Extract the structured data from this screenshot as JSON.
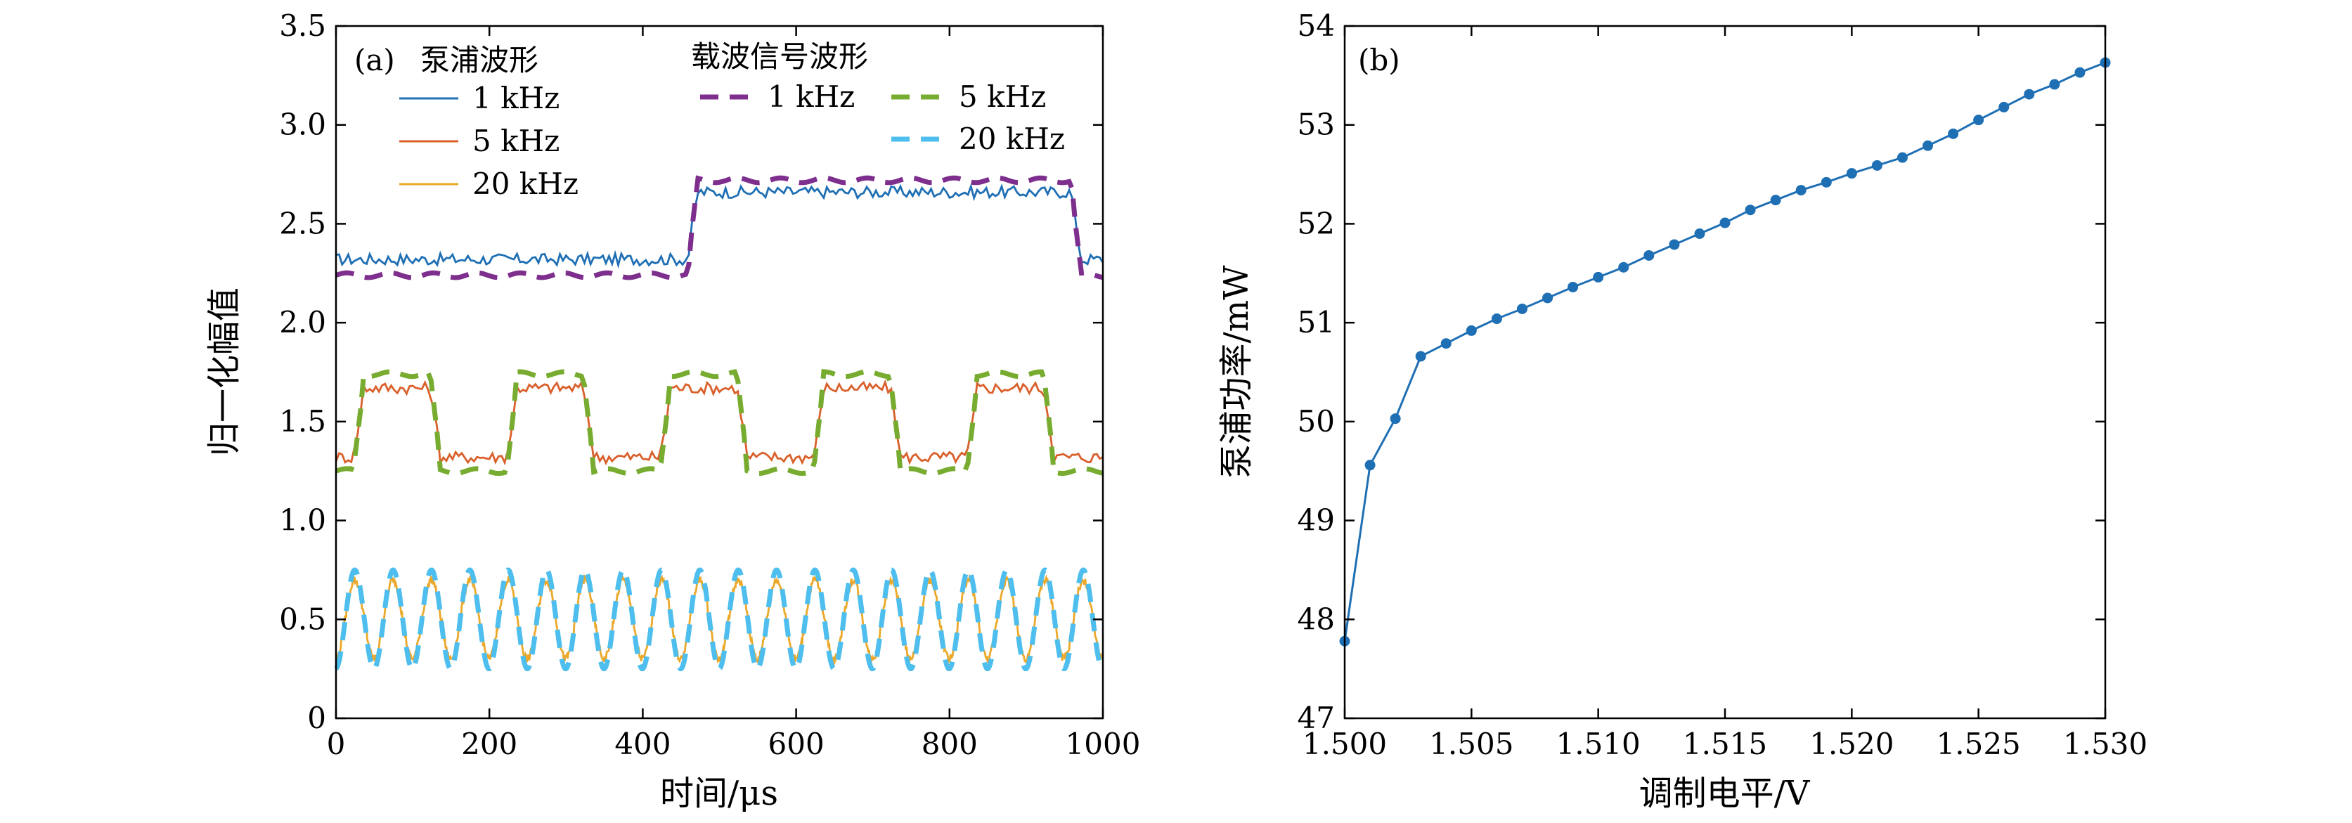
{
  "chart_data": [
    {
      "panel": "(a)",
      "type": "line",
      "xlabel": "时间/μs",
      "ylabel": "归一化幅值",
      "xlim": [
        0,
        1000
      ],
      "ylim": [
        0,
        3.5
      ],
      "xticks": [
        "0",
        "200",
        "400",
        "600",
        "800",
        "1000"
      ],
      "yticks": [
        "0",
        "0.5",
        "1.0",
        "1.5",
        "2.0",
        "2.5",
        "3.0",
        "3.5"
      ],
      "legend": {
        "group1_title": "泵浦波形",
        "group2_title": "载波信号波形",
        "placement": "top-left"
      },
      "series": [
        {
          "name": "1 kHz",
          "group": "泵浦波形",
          "color": "#1f6fb4",
          "style": "solid",
          "period_us": 1000,
          "low": 2.32,
          "high": 2.66,
          "transitions_us": [
            465,
            965
          ],
          "noise": 0.03
        },
        {
          "name": "5 kHz",
          "group": "泵浦波形",
          "color": "#d9602b",
          "style": "solid",
          "period_us": 200,
          "low": 1.32,
          "high": 1.67,
          "transitions_us": [
            30,
            130
          ],
          "noise": 0.03
        },
        {
          "name": "20 kHz",
          "group": "泵浦波形",
          "color": "#eba82a",
          "style": "solid",
          "period_us": 50,
          "low": 0.3,
          "high": 0.7,
          "noise": 0.02
        },
        {
          "name": "1 kHz",
          "group": "载波信号波形",
          "color": "#7e2f8e",
          "style": "dashed",
          "period_us": 1000,
          "low": 2.24,
          "high": 2.72,
          "transitions_us": [
            465,
            965
          ]
        },
        {
          "name": "5 kHz",
          "group": "载波信号波形",
          "color": "#77ac30",
          "style": "dashed",
          "period_us": 200,
          "low": 1.25,
          "high": 1.74,
          "transitions_us": [
            30,
            130
          ]
        },
        {
          "name": "20 kHz",
          "group": "载波信号波形",
          "color": "#4dbeee",
          "style": "dashed",
          "period_us": 50,
          "low": 0.25,
          "high": 0.75
        }
      ]
    },
    {
      "panel": "(b)",
      "type": "line",
      "xlabel": "调制电平/V",
      "ylabel": "泵浦功率/mW",
      "xlim": [
        1.5,
        1.53
      ],
      "ylim": [
        47,
        54
      ],
      "xticks": [
        "1.500",
        "1.505",
        "1.510",
        "1.515",
        "1.520",
        "1.525",
        "1.530"
      ],
      "yticks": [
        "47",
        "48",
        "49",
        "50",
        "51",
        "52",
        "53",
        "54"
      ],
      "color": "#1f6fb4",
      "x": [
        1.5,
        1.501,
        1.502,
        1.503,
        1.504,
        1.505,
        1.506,
        1.507,
        1.508,
        1.509,
        1.51,
        1.511,
        1.512,
        1.513,
        1.514,
        1.515,
        1.516,
        1.517,
        1.518,
        1.519,
        1.52,
        1.521,
        1.522,
        1.523,
        1.524,
        1.525,
        1.526,
        1.527,
        1.528,
        1.529,
        1.53
      ],
      "y": [
        47.78,
        49.56,
        50.03,
        50.66,
        50.79,
        50.92,
        51.04,
        51.14,
        51.25,
        51.36,
        51.46,
        51.56,
        51.68,
        51.79,
        51.9,
        52.01,
        52.14,
        52.24,
        52.34,
        52.42,
        52.51,
        52.59,
        52.67,
        52.79,
        52.91,
        53.05,
        53.18,
        53.31,
        53.41,
        53.53,
        53.63
      ]
    }
  ]
}
